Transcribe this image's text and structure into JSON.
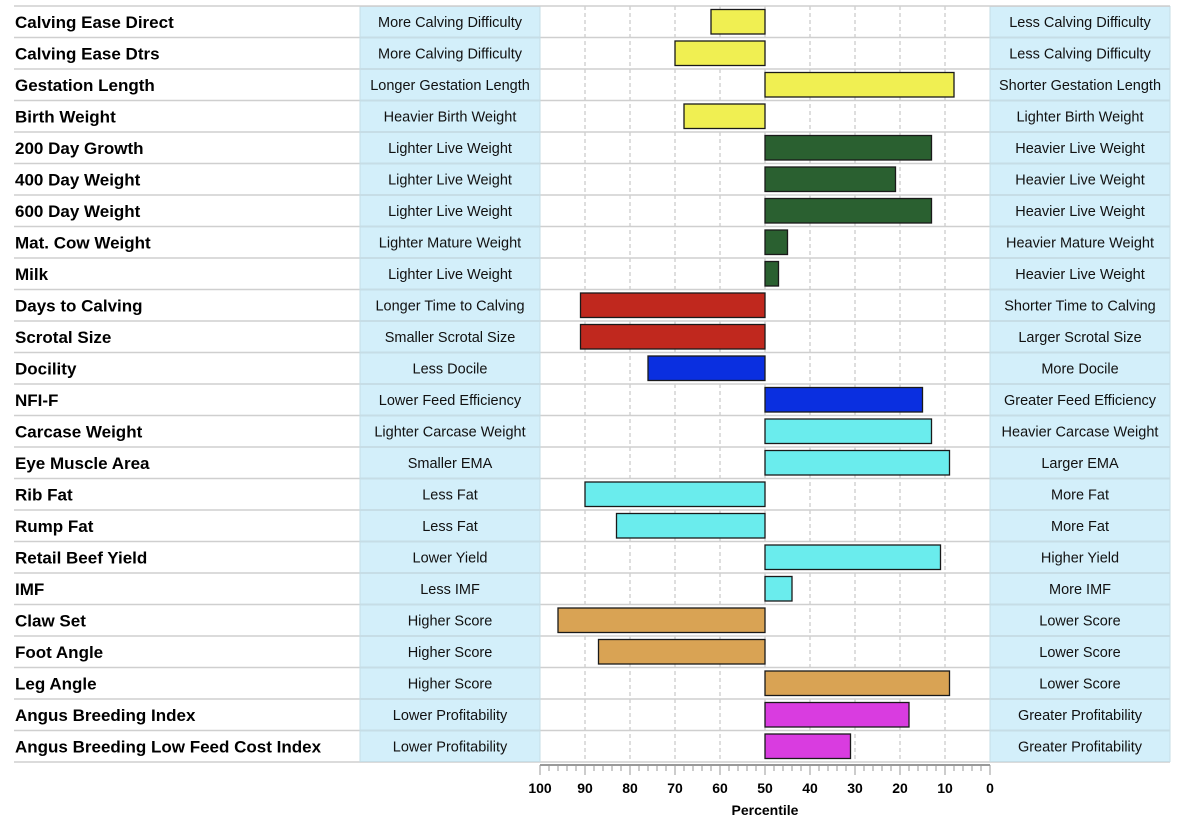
{
  "chart_data": {
    "type": "bar",
    "orientation": "horizontal",
    "xlabel": "Percentile",
    "xlim": [
      100,
      0
    ],
    "center": 50,
    "ticks": [
      100,
      90,
      80,
      70,
      60,
      50,
      40,
      30,
      20,
      10,
      0
    ],
    "grid": true,
    "colors": {
      "yellow": "#f0ef52",
      "green": "#2a6030",
      "red": "#c0281e",
      "blue": "#0a2fe0",
      "cyan": "#6aeced",
      "tan": "#d9a354",
      "magenta": "#d93ce0",
      "label_box": "#d3effa"
    },
    "traits": [
      {
        "name": "Calving Ease Direct",
        "left": "More Calving Difficulty",
        "right": "Less Calving Difficulty",
        "value": 62,
        "color": "yellow"
      },
      {
        "name": "Calving Ease Dtrs",
        "left": "More Calving Difficulty",
        "right": "Less Calving Difficulty",
        "value": 70,
        "color": "yellow"
      },
      {
        "name": "Gestation Length",
        "left": "Longer Gestation Length",
        "right": "Shorter Gestation Length",
        "value": 8,
        "color": "yellow"
      },
      {
        "name": "Birth Weight",
        "left": "Heavier Birth Weight",
        "right": "Lighter Birth Weight",
        "value": 68,
        "color": "yellow"
      },
      {
        "name": "200 Day Growth",
        "left": "Lighter Live Weight",
        "right": "Heavier Live Weight",
        "value": 13,
        "color": "green"
      },
      {
        "name": "400 Day Weight",
        "left": "Lighter Live Weight",
        "right": "Heavier Live Weight",
        "value": 21,
        "color": "green"
      },
      {
        "name": "600 Day Weight",
        "left": "Lighter Live Weight",
        "right": "Heavier Live Weight",
        "value": 13,
        "color": "green"
      },
      {
        "name": "Mat. Cow Weight",
        "left": "Lighter Mature Weight",
        "right": "Heavier Mature Weight",
        "value": 45,
        "color": "green"
      },
      {
        "name": "Milk",
        "left": "Lighter Live Weight",
        "right": "Heavier Live Weight",
        "value": 47,
        "color": "green"
      },
      {
        "name": "Days to Calving",
        "left": "Longer Time to Calving",
        "right": "Shorter Time to Calving",
        "value": 91,
        "color": "red"
      },
      {
        "name": "Scrotal Size",
        "left": "Smaller Scrotal Size",
        "right": "Larger Scrotal Size",
        "value": 91,
        "color": "red"
      },
      {
        "name": "Docility",
        "left": "Less Docile",
        "right": "More Docile",
        "value": 76,
        "color": "blue"
      },
      {
        "name": "NFI-F",
        "left": "Lower Feed Efficiency",
        "right": "Greater Feed Efficiency",
        "value": 15,
        "color": "blue"
      },
      {
        "name": "Carcase Weight",
        "left": "Lighter Carcase Weight",
        "right": "Heavier Carcase Weight",
        "value": 13,
        "color": "cyan"
      },
      {
        "name": "Eye Muscle Area",
        "left": "Smaller EMA",
        "right": "Larger EMA",
        "value": 9,
        "color": "cyan"
      },
      {
        "name": "Rib Fat",
        "left": "Less Fat",
        "right": "More Fat",
        "value": 90,
        "color": "cyan"
      },
      {
        "name": "Rump Fat",
        "left": "Less Fat",
        "right": "More Fat",
        "value": 83,
        "color": "cyan"
      },
      {
        "name": "Retail Beef Yield",
        "left": "Lower Yield",
        "right": "Higher Yield",
        "value": 11,
        "color": "cyan"
      },
      {
        "name": "IMF",
        "left": "Less IMF",
        "right": "More IMF",
        "value": 44,
        "color": "cyan"
      },
      {
        "name": "Claw Set",
        "left": "Higher Score",
        "right": "Lower Score",
        "value": 96,
        "color": "tan"
      },
      {
        "name": "Foot Angle",
        "left": "Higher Score",
        "right": "Lower Score",
        "value": 87,
        "color": "tan"
      },
      {
        "name": "Leg Angle",
        "left": "Higher Score",
        "right": "Lower Score",
        "value": 9,
        "color": "tan"
      },
      {
        "name": "Angus Breeding Index",
        "left": "Lower Profitability",
        "right": "Greater Profitability",
        "value": 18,
        "color": "magenta"
      },
      {
        "name": "Angus Breeding Low Feed Cost Index",
        "left": "Lower Profitability",
        "right": "Greater Profitability",
        "value": 31,
        "color": "magenta"
      }
    ]
  }
}
